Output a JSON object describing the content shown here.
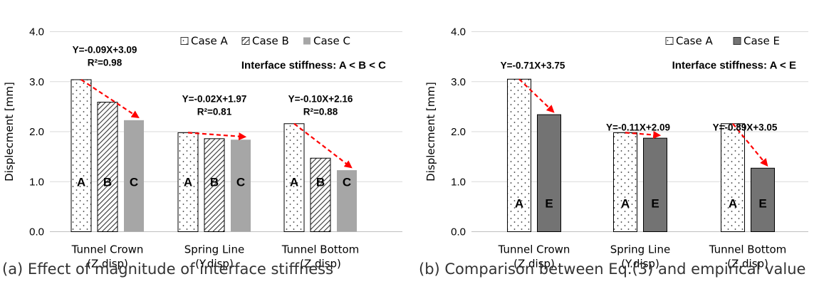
{
  "chart_data": [
    {
      "type": "bar",
      "panel": "a",
      "caption": "(a) Effect of magnitude of interface stiffness",
      "ylabel": "Displecment [mm]",
      "ylim": [
        0,
        4
      ],
      "yticks": [
        "0.0",
        "1.0",
        "2.0",
        "3.0",
        "4.0"
      ],
      "grid": true,
      "legend_position": "top-right",
      "categories": [
        "Tunnel Crown",
        "Spring Line",
        "Tunnel Bottom"
      ],
      "category_sublabels": [
        "(Z.disp)",
        "(Y.disp)",
        "(Z.disp)"
      ],
      "series": [
        {
          "name": "Case A",
          "letter": "A",
          "pattern": "dots",
          "values": [
            3.04,
            1.98,
            2.16
          ]
        },
        {
          "name": "Case B",
          "letter": "B",
          "pattern": "hatch",
          "values": [
            2.59,
            1.86,
            1.47
          ]
        },
        {
          "name": "Case C",
          "letter": "C",
          "pattern": "light",
          "values": [
            2.23,
            1.84,
            1.23
          ]
        }
      ],
      "stiffness_note": "Interface stiffness: A < B < C",
      "equations": [
        {
          "category": "Tunnel Crown",
          "equation": "Y=-0.09X+3.09",
          "r2": "R²=0.98"
        },
        {
          "category": "Spring Line",
          "equation": "Y=-0.02X+1.97",
          "r2": "R²=0.81"
        },
        {
          "category": "Tunnel Bottom",
          "equation": "Y=-0.10X+2.16",
          "r2": "R²=0.88"
        }
      ]
    },
    {
      "type": "bar",
      "panel": "b",
      "caption": "(b) Comparison between Eq.(3) and empirical value",
      "ylabel": "Displecment [mm]",
      "ylim": [
        0,
        4
      ],
      "yticks": [
        "0.0",
        "1.0",
        "2.0",
        "3.0",
        "4.0"
      ],
      "grid": true,
      "legend_position": "top-right",
      "categories": [
        "Tunnel Crown",
        "Spring Line",
        "Tunnel Bottom"
      ],
      "category_sublabels": [
        "(Z.disp)",
        "(Y.disp)",
        "(Z.disp)"
      ],
      "series": [
        {
          "name": "Case A",
          "letter": "A",
          "pattern": "dots",
          "values": [
            3.05,
            1.98,
            2.16
          ]
        },
        {
          "name": "Case E",
          "letter": "E",
          "pattern": "dark",
          "values": [
            2.34,
            1.87,
            1.27
          ]
        }
      ],
      "stiffness_note": "Interface stiffness: A < E",
      "equations": [
        {
          "category": "Tunnel Crown",
          "equation": "Y=-0.71X+3.75"
        },
        {
          "category": "Spring Line",
          "equation": "Y=-0.11X+2.09"
        },
        {
          "category": "Tunnel Bottom",
          "equation": "Y=-0.89X+3.05"
        }
      ]
    }
  ],
  "colors": {
    "grid": "#d9d9d9",
    "axis": "#bfbfbf",
    "bar_outline": "#000000",
    "light_fill": "#a6a6a6",
    "dark_fill": "#737373",
    "trend_arrow": "#ff0000",
    "text": "#000000"
  }
}
